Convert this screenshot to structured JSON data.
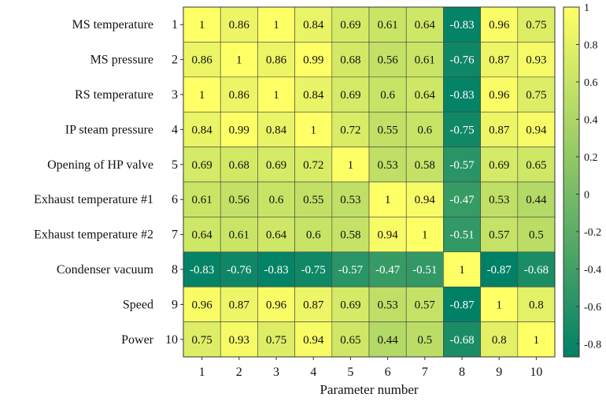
{
  "chart_data": {
    "type": "heatmap",
    "xlabel": "Parameter number",
    "row_labels": [
      "MS temperature",
      "MS pressure",
      "RS temperature",
      "IP steam pressure",
      "Opening of HP valve",
      "Exhaust temperature #1",
      "Exhaust temperature #2",
      "Condenser vacuum",
      "Speed",
      "Power"
    ],
    "row_numbers": [
      "1",
      "2",
      "3",
      "4",
      "5",
      "6",
      "7",
      "8",
      "9",
      "10"
    ],
    "col_numbers": [
      "1",
      "2",
      "3",
      "4",
      "5",
      "6",
      "7",
      "8",
      "9",
      "10"
    ],
    "values": [
      [
        1,
        0.86,
        1,
        0.84,
        0.69,
        0.61,
        0.64,
        -0.83,
        0.96,
        0.75
      ],
      [
        0.86,
        1,
        0.86,
        0.99,
        0.68,
        0.56,
        0.61,
        -0.76,
        0.87,
        0.93
      ],
      [
        1,
        0.86,
        1,
        0.84,
        0.69,
        0.6,
        0.64,
        -0.83,
        0.96,
        0.75
      ],
      [
        0.84,
        0.99,
        0.84,
        1,
        0.72,
        0.55,
        0.6,
        -0.75,
        0.87,
        0.94
      ],
      [
        0.69,
        0.68,
        0.69,
        0.72,
        1,
        0.53,
        0.58,
        -0.57,
        0.69,
        0.65
      ],
      [
        0.61,
        0.56,
        0.6,
        0.55,
        0.53,
        1,
        0.94,
        -0.47,
        0.53,
        0.44
      ],
      [
        0.64,
        0.61,
        0.64,
        0.6,
        0.58,
        0.94,
        1,
        -0.51,
        0.57,
        0.5
      ],
      [
        -0.83,
        -0.76,
        -0.83,
        -0.75,
        -0.57,
        -0.47,
        -0.51,
        1,
        -0.87,
        -0.68
      ],
      [
        0.96,
        0.87,
        0.96,
        0.87,
        0.69,
        0.53,
        0.57,
        -0.87,
        1,
        0.8
      ],
      [
        0.75,
        0.93,
        0.75,
        0.94,
        0.65,
        0.44,
        0.5,
        -0.68,
        0.8,
        1
      ]
    ],
    "colorbar": {
      "ticks": [
        "1",
        "0.8",
        "0.6",
        "0.4",
        "0.2",
        "0",
        "-0.2",
        "-0.4",
        "-0.6",
        "-0.8"
      ],
      "tick_values": [
        1,
        0.8,
        0.6,
        0.4,
        0.2,
        0,
        -0.2,
        -0.4,
        -0.6,
        -0.8
      ],
      "range": [
        -0.87,
        1
      ],
      "colormap": "summer",
      "low_color": "#008066",
      "high_color": "#ffff66"
    }
  }
}
